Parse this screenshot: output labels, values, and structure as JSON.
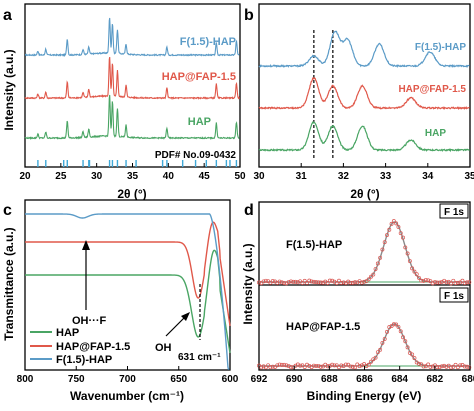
{
  "panels": {
    "a": {
      "letter": "a"
    },
    "b": {
      "letter": "b"
    },
    "c": {
      "letter": "c"
    },
    "d": {
      "letter": "d"
    }
  },
  "chart_data": [
    {
      "panel": "a",
      "type": "line",
      "xlabel": "2θ (°)",
      "ylabel": "Intensity (a.u.)",
      "xlim": [
        20,
        50
      ],
      "xticks": [
        "20",
        "25",
        "30",
        "35",
        "40",
        "45",
        "50"
      ],
      "grid": false,
      "series": [
        {
          "name": "F(1.5)-HAP",
          "color": "#5b9bc7",
          "peaks": [
            [
              21.8,
              4
            ],
            [
              22.9,
              6
            ],
            [
              25.9,
              16
            ],
            [
              28.1,
              5
            ],
            [
              28.9,
              7
            ],
            [
              31.8,
              36
            ],
            [
              32.2,
              30
            ],
            [
              32.9,
              24
            ],
            [
              34.1,
              10
            ],
            [
              39.8,
              8
            ],
            [
              46.7,
              12
            ],
            [
              49.5,
              14
            ]
          ]
        },
        {
          "name": "HAP@FAP-1.5",
          "color": "#e0584a",
          "peaks": [
            [
              21.8,
              4
            ],
            [
              22.9,
              6
            ],
            [
              25.9,
              16
            ],
            [
              28.1,
              5
            ],
            [
              28.9,
              8
            ],
            [
              31.8,
              40
            ],
            [
              32.2,
              33
            ],
            [
              32.9,
              26
            ],
            [
              34.1,
              12
            ],
            [
              39.8,
              10
            ],
            [
              46.7,
              14
            ],
            [
              49.5,
              15
            ]
          ]
        },
        {
          "name": "HAP",
          "color": "#4aa564",
          "peaks": [
            [
              21.8,
              4
            ],
            [
              22.9,
              6
            ],
            [
              25.9,
              17
            ],
            [
              28.1,
              6
            ],
            [
              28.9,
              8
            ],
            [
              31.8,
              42
            ],
            [
              32.2,
              35
            ],
            [
              32.9,
              28
            ],
            [
              34.1,
              12
            ],
            [
              39.8,
              10
            ],
            [
              46.7,
              15
            ],
            [
              49.5,
              16
            ]
          ]
        }
      ],
      "reference": {
        "label": "PDF# No.09-0432",
        "color": "#3fa8d8",
        "lines": [
          21.8,
          22.9,
          25.4,
          25.9,
          28.1,
          28.9,
          29.0,
          31.8,
          32.2,
          32.9,
          34.1,
          35.5,
          39.2,
          39.8,
          42.0,
          43.8,
          45.3,
          46.7,
          48.1,
          48.6,
          49.5
        ]
      }
    },
    {
      "panel": "b",
      "type": "line",
      "xlabel": "2θ (°)",
      "xlim": [
        30,
        35
      ],
      "xticks": [
        "30",
        "31",
        "32",
        "33",
        "34",
        "35"
      ],
      "grid": false,
      "reference_lines": [
        31.3,
        31.75
      ],
      "series": [
        {
          "name": "F(1.5)-HAP",
          "color": "#5b9bc7",
          "peaks": [
            [
              31.3,
              10
            ],
            [
              31.8,
              34
            ],
            [
              32.1,
              26
            ],
            [
              32.85,
              22
            ],
            [
              34.05,
              14
            ]
          ]
        },
        {
          "name": "HAP@FAP-1.5",
          "color": "#e0584a",
          "peaks": [
            [
              31.3,
              30
            ],
            [
              31.75,
              22
            ],
            [
              32.45,
              22
            ],
            [
              33.6,
              10
            ]
          ]
        },
        {
          "name": "HAP",
          "color": "#4aa564",
          "peaks": [
            [
              31.3,
              28
            ],
            [
              31.75,
              24
            ],
            [
              32.45,
              24
            ],
            [
              33.6,
              10
            ]
          ]
        }
      ]
    },
    {
      "panel": "c",
      "type": "line",
      "xlabel": "Wavenumber (cm⁻¹)",
      "ylabel": "Transmittance (a.u.)",
      "xlim": [
        800,
        600
      ],
      "xticks": [
        "800",
        "750",
        "700",
        "650",
        "600"
      ],
      "grid": false,
      "annotations": [
        {
          "text": "OH···F",
          "x": 745
        },
        {
          "text": "OH",
          "x": 640
        },
        {
          "text": "631 cm⁻¹",
          "x": 631
        }
      ],
      "series": [
        {
          "name": "HAP",
          "color": "#4aa564",
          "dips": [
            [
              631,
              0.92
            ],
            [
              601,
              1.0
            ]
          ]
        },
        {
          "name": "HAP@FAP-1.5",
          "color": "#e0584a",
          "dips": [
            [
              631,
              0.9
            ],
            [
              604,
              0.8
            ]
          ]
        },
        {
          "name": "F(1.5)-HAP",
          "color": "#5b9bc7",
          "dips": [
            [
              744,
              0.05
            ],
            [
              605,
              1.0
            ]
          ]
        }
      ]
    },
    {
      "panel": "d",
      "type": "line",
      "xlabel": "Binding Energy (eV)",
      "ylabel": "Intensity (a.u.)",
      "xlim": [
        692,
        680
      ],
      "xticks": [
        "692",
        "690",
        "688",
        "686",
        "684",
        "682",
        "680"
      ],
      "grid": false,
      "subplots": [
        {
          "name": "F(1.5)-HAP",
          "badge": "F 1s",
          "peak_center": 684.3,
          "peak_height": 0.85
        },
        {
          "name": "HAP@FAP-1.5",
          "badge": "F 1s",
          "peak_center": 684.3,
          "peak_height": 0.6
        }
      ],
      "colors": {
        "data": "#d9534f",
        "fit": "#8a8a8a",
        "baseline": "#4aa564"
      }
    }
  ]
}
